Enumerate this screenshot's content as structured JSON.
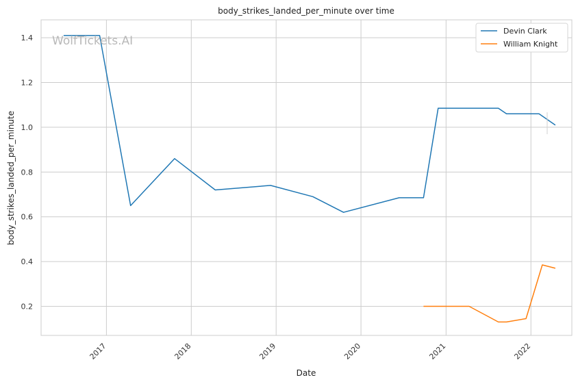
{
  "chart_data": {
    "type": "line",
    "title": "body_strikes_landed_per_minute over time",
    "xlabel": "Date",
    "ylabel": "body_strikes_landed_per_minute",
    "watermark": "WolfTickets.AI",
    "x_ticks": [
      "2017",
      "2018",
      "2019",
      "2020",
      "2021",
      "2022"
    ],
    "y_ticks": [
      "0.2",
      "0.4",
      "0.6",
      "0.8",
      "1.0",
      "1.2",
      "1.4"
    ],
    "xlim": [
      "2016-03-26",
      "2022-06-26"
    ],
    "ylim": [
      0.07,
      1.48
    ],
    "grid": true,
    "legend_position": "top-right",
    "series": [
      {
        "name": "Devin Clark",
        "color": "#1f77b4",
        "points": [
          [
            "2016-07-01",
            1.41
          ],
          [
            "2016-12-03",
            1.41
          ],
          [
            "2017-04-15",
            0.65
          ],
          [
            "2017-10-21",
            0.86
          ],
          [
            "2018-04-14",
            0.72
          ],
          [
            "2018-12-08",
            0.74
          ],
          [
            "2019-06-08",
            0.69
          ],
          [
            "2019-10-18",
            0.62
          ],
          [
            "2020-06-13",
            0.685
          ],
          [
            "2020-09-26",
            0.685
          ],
          [
            "2020-11-28",
            1.085
          ],
          [
            "2021-08-14",
            1.085
          ],
          [
            "2021-09-18",
            1.06
          ],
          [
            "2022-02-05",
            1.06
          ],
          [
            "2022-04-16",
            1.01
          ]
        ]
      },
      {
        "name": "William Knight",
        "color": "#ff7f0e",
        "points": [
          [
            "2020-09-26",
            0.2
          ],
          [
            "2021-04-10",
            0.2
          ],
          [
            "2021-08-14",
            0.13
          ],
          [
            "2021-09-18",
            0.13
          ],
          [
            "2021-12-11",
            0.145
          ],
          [
            "2022-02-19",
            0.385
          ],
          [
            "2022-04-16",
            0.37
          ]
        ]
      }
    ]
  }
}
